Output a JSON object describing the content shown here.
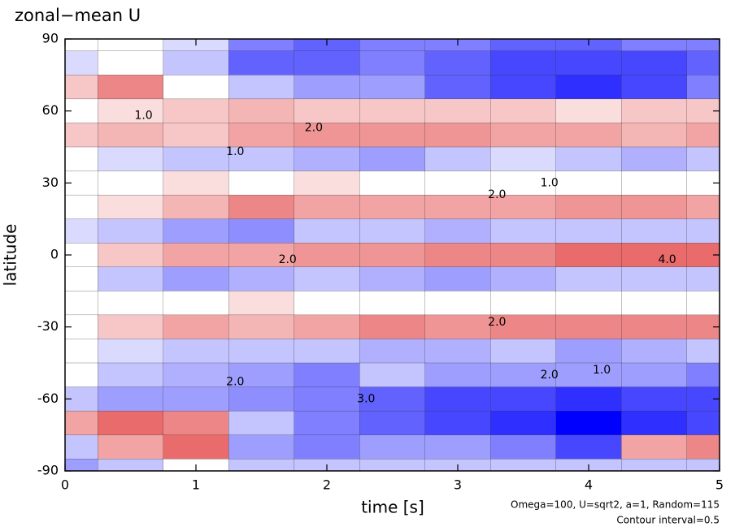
{
  "chart_data": {
    "type": "heatmap",
    "title": "zonal−mean U",
    "x_label": "time [s]",
    "y_label": "latitude",
    "notes": [
      "Omega=100, U=sqrt2, a=1, Random=115",
      "Contour interval=0.5"
    ],
    "x": [
      0,
      0.5,
      1,
      1.5,
      2,
      2.5,
      3,
      3.5,
      4,
      4.5,
      5
    ],
    "y": [
      90,
      80,
      70,
      60,
      50,
      40,
      30,
      20,
      10,
      0,
      -10,
      -20,
      -30,
      -40,
      -50,
      -60,
      -70,
      -80,
      -90
    ],
    "z": [
      [
        0,
        0,
        -0.5,
        -3,
        -4,
        -3,
        -3,
        -4,
        -4,
        -3,
        -3
      ],
      [
        -0.5,
        0,
        -1,
        -4,
        -4,
        -3,
        -4,
        -5,
        -5,
        -5,
        -4
      ],
      [
        1,
        3,
        0,
        -1,
        -2,
        -2,
        -4,
        -5,
        -6,
        -5,
        -3
      ],
      [
        0,
        0.5,
        1,
        1.5,
        1,
        1,
        1,
        1,
        0.5,
        1,
        1
      ],
      [
        1,
        1.5,
        1,
        2,
        2.5,
        2.5,
        2.5,
        2,
        2,
        1.5,
        2
      ],
      [
        0,
        -0.5,
        -1,
        -1,
        -1.5,
        -2,
        -1,
        -0.5,
        -1,
        -1.5,
        -1
      ],
      [
        0,
        0,
        0.5,
        0,
        0.5,
        0,
        0,
        0,
        0,
        0,
        0
      ],
      [
        0,
        0.5,
        1.5,
        3,
        2,
        2,
        2,
        2,
        2.5,
        2.5,
        2
      ],
      [
        -0.5,
        -1,
        -2,
        -2.5,
        -1,
        -1,
        -1.5,
        -1,
        -1,
        -1,
        -1
      ],
      [
        0,
        1,
        2,
        2,
        2.5,
        2.5,
        3,
        3,
        4,
        4,
        4
      ],
      [
        0,
        -1,
        -2,
        -1.5,
        -1,
        -1.5,
        -2,
        -1.5,
        -1,
        -1,
        -1
      ],
      [
        0,
        0,
        0,
        0.5,
        0,
        0,
        0,
        0,
        0,
        0,
        0
      ],
      [
        0,
        1,
        2,
        1.5,
        2,
        3,
        2.5,
        3,
        3,
        3,
        3
      ],
      [
        0,
        -0.5,
        -1,
        -1,
        -1,
        -1.5,
        -1.5,
        -1,
        -2,
        -1.5,
        -1
      ],
      [
        0,
        -1,
        -1.5,
        -2,
        -3,
        -1,
        -2,
        -2,
        -2,
        -2,
        -3
      ],
      [
        -1,
        -2,
        -2,
        -2.5,
        -3,
        -4,
        -5,
        -5,
        -6,
        -5,
        -5
      ],
      [
        2,
        4,
        3,
        -1,
        -3,
        -4,
        -5,
        -6,
        -8,
        -6,
        -5
      ],
      [
        -1,
        2,
        4,
        -2,
        -3,
        -2,
        -2,
        -3,
        -5,
        2,
        3
      ],
      [
        -2,
        -1,
        0,
        -1,
        -1,
        -1,
        -1,
        -1,
        -1,
        -1,
        -1
      ]
    ],
    "xlim": [
      0,
      5
    ],
    "ylim": [
      -90,
      90
    ],
    "xticks": [
      0,
      1,
      2,
      3,
      4,
      5
    ],
    "yticks": [
      -90,
      -60,
      -30,
      0,
      30,
      60,
      90
    ],
    "annotations": [
      {
        "text": "2.0",
        "x": 1.9,
        "y": 53
      },
      {
        "text": "1.0",
        "x": 1.3,
        "y": 43
      },
      {
        "text": "2.0",
        "x": 3.3,
        "y": 25
      },
      {
        "text": "1.0",
        "x": 3.7,
        "y": 30
      },
      {
        "text": "4.0",
        "x": 4.6,
        "y": -2
      },
      {
        "text": "2.0",
        "x": 1.7,
        "y": -2
      },
      {
        "text": "2.0",
        "x": 3.3,
        "y": -28
      },
      {
        "text": "2.0",
        "x": 3.7,
        "y": -50
      },
      {
        "text": "3.0",
        "x": 2.3,
        "y": -60
      },
      {
        "text": "1.0",
        "x": 0.6,
        "y": 58
      },
      {
        "text": "2.0",
        "x": 1.3,
        "y": -53
      },
      {
        "text": "1.0",
        "x": 4.1,
        "y": -48
      }
    ]
  }
}
